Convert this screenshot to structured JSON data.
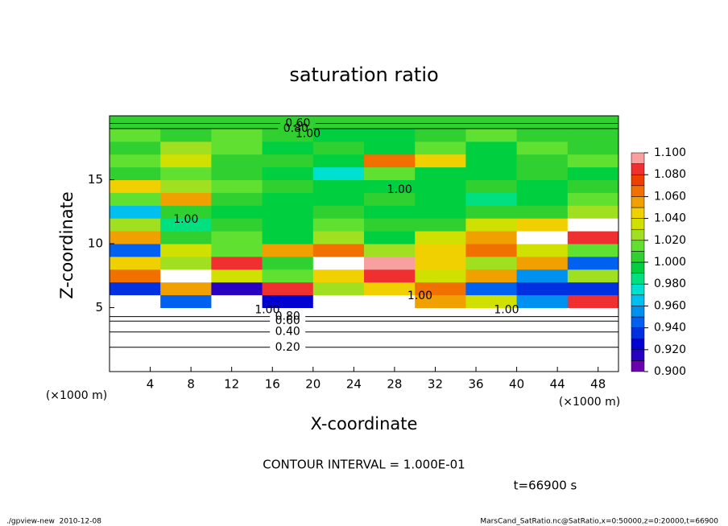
{
  "chart_data": {
    "type": "contour",
    "title": "saturation ratio",
    "xlabel": "X-coordinate",
    "ylabel": "Z-coordinate",
    "axis_unit": "(×1000 m)",
    "xlim": [
      0,
      50
    ],
    "xticks": [
      4,
      8,
      12,
      16,
      20,
      24,
      28,
      32,
      36,
      40,
      44,
      48
    ],
    "ylim": [
      0,
      20
    ],
    "yticks": [
      5,
      10,
      15
    ],
    "field": {
      "x": [
        2.5,
        7.5,
        12.5,
        17.5,
        22.5,
        27.5,
        32.5,
        37.5,
        42.5,
        47.5
      ],
      "z": [
        0.5,
        1.5,
        2.5,
        3.5,
        4.5,
        5.5,
        6.5,
        7.5,
        8.5,
        9.5,
        10.5,
        11.5,
        12.5,
        13.5,
        14.5,
        15.5,
        16.5,
        17.5,
        18.5,
        19.5
      ],
      "values": [
        [
          0.1,
          0.1,
          0.1,
          0.1,
          0.1,
          0.1,
          0.1,
          0.1,
          0.1,
          0.1
        ],
        [
          0.22,
          0.22,
          0.22,
          0.22,
          0.22,
          0.22,
          0.22,
          0.22,
          0.22,
          0.22
        ],
        [
          0.38,
          0.38,
          0.38,
          0.38,
          0.38,
          0.38,
          0.38,
          0.38,
          0.38,
          0.38
        ],
        [
          0.58,
          0.58,
          0.58,
          0.58,
          0.58,
          0.58,
          0.58,
          0.58,
          0.58,
          0.58
        ],
        [
          0.85,
          0.82,
          0.86,
          0.84,
          0.83,
          0.85,
          0.84,
          0.86,
          0.83,
          0.85
        ],
        [
          1.12,
          0.95,
          1.13,
          0.92,
          1.14,
          1.12,
          1.06,
          1.04,
          0.96,
          1.08
        ],
        [
          0.93,
          1.06,
          0.91,
          1.08,
          1.03,
          1.05,
          1.07,
          0.95,
          0.93,
          0.94
        ],
        [
          1.07,
          1.12,
          1.04,
          1.02,
          1.05,
          1.08,
          1.04,
          1.06,
          0.96,
          1.03
        ],
        [
          1.05,
          1.03,
          1.08,
          1.01,
          1.12,
          1.09,
          1.05,
          1.03,
          1.06,
          0.95
        ],
        [
          0.95,
          1.04,
          1.02,
          1.06,
          1.07,
          1.03,
          1.05,
          1.07,
          1.04,
          1.02
        ],
        [
          1.06,
          1.01,
          1.02,
          1.0,
          1.03,
          1.0,
          1.04,
          1.06,
          1.12,
          1.08
        ],
        [
          1.03,
          0.99,
          1.01,
          1.0,
          1.02,
          1.01,
          1.01,
          1.04,
          1.05,
          1.13
        ],
        [
          0.97,
          1.01,
          1.0,
          1.0,
          1.01,
          1.0,
          1.0,
          1.01,
          1.01,
          1.03
        ],
        [
          1.02,
          1.06,
          1.01,
          1.0,
          1.0,
          1.01,
          1.0,
          0.99,
          1.0,
          1.02
        ],
        [
          1.05,
          1.03,
          1.02,
          1.01,
          1.0,
          1.0,
          1.0,
          1.01,
          1.0,
          1.01
        ],
        [
          1.01,
          1.02,
          1.01,
          1.0,
          0.98,
          1.02,
          1.0,
          1.0,
          1.01,
          1.0
        ],
        [
          1.02,
          1.04,
          1.01,
          1.01,
          1.0,
          1.07,
          1.05,
          1.0,
          1.01,
          1.02
        ],
        [
          1.01,
          1.03,
          1.02,
          1.0,
          1.01,
          1.0,
          1.02,
          1.0,
          1.02,
          1.01
        ],
        [
          1.02,
          1.01,
          1.02,
          1.01,
          1.0,
          1.0,
          1.01,
          1.02,
          1.01,
          1.01
        ],
        [
          1.01,
          1.01,
          1.01,
          1.01,
          1.01,
          1.01,
          1.01,
          1.01,
          1.01,
          1.01
        ]
      ]
    },
    "contour_labels": [
      {
        "value": 0.6,
        "label": "0.60",
        "x": 18.5,
        "z": 19.4
      },
      {
        "value": 0.8,
        "label": "0.80",
        "x": 18.3,
        "z": 19.0
      },
      {
        "value": 1.0,
        "label": "1.00",
        "x": 19.5,
        "z": 18.6
      },
      {
        "value": 1.0,
        "label": "1.00",
        "x": 28.5,
        "z": 14.2
      },
      {
        "value": 1.0,
        "label": "1.00",
        "x": 7.5,
        "z": 11.9
      },
      {
        "value": 1.0,
        "label": "1.00",
        "x": 30.5,
        "z": 5.9
      },
      {
        "value": 1.0,
        "label": "1.00",
        "x": 15.5,
        "z": 4.8
      },
      {
        "value": 1.0,
        "label": "1.00",
        "x": 39,
        "z": 4.8
      },
      {
        "value": 0.8,
        "label": "0.80",
        "x": 17.5,
        "z": 4.3
      },
      {
        "value": 0.6,
        "label": "0.60",
        "x": 17.5,
        "z": 3.95
      },
      {
        "value": 0.4,
        "label": "0.40",
        "x": 17.5,
        "z": 3.1
      },
      {
        "value": 0.2,
        "label": "0.20",
        "x": 17.5,
        "z": 1.9
      }
    ],
    "colorbar": {
      "lim": [
        0.9,
        1.1
      ],
      "ticks": [
        {
          "value": 0.9,
          "label": "0.900"
        },
        {
          "value": 0.92,
          "label": "0.920"
        },
        {
          "value": 0.94,
          "label": "0.940"
        },
        {
          "value": 0.96,
          "label": "0.960"
        },
        {
          "value": 0.98,
          "label": "0.980"
        },
        {
          "value": 1.0,
          "label": "1.000"
        },
        {
          "value": 1.02,
          "label": "1.020"
        },
        {
          "value": 1.04,
          "label": "1.040"
        },
        {
          "value": 1.06,
          "label": "1.060"
        },
        {
          "value": 1.08,
          "label": "1.080"
        },
        {
          "value": 1.1,
          "label": "1.100"
        }
      ],
      "colors": [
        "#6a00b0",
        "#2800c0",
        "#0000d0",
        "#0030e0",
        "#0060f0",
        "#0090f0",
        "#00c0f0",
        "#00e0d0",
        "#00e080",
        "#00d040",
        "#30d030",
        "#60e030",
        "#a0e020",
        "#d0e000",
        "#f0d000",
        "#f0a000",
        "#f07000",
        "#f04000",
        "#f03030",
        "#f8a0a0"
      ]
    },
    "contour_interval_note": "CONTOUR INTERVAL = 1.000E-01",
    "time_label": "t=66900 s",
    "footer_left": "./gpview-new  2010-12-08",
    "footer_right": "MarsCand_SatRatio.nc@SatRatio,x=0:50000,z=0:20000,t=66900"
  }
}
